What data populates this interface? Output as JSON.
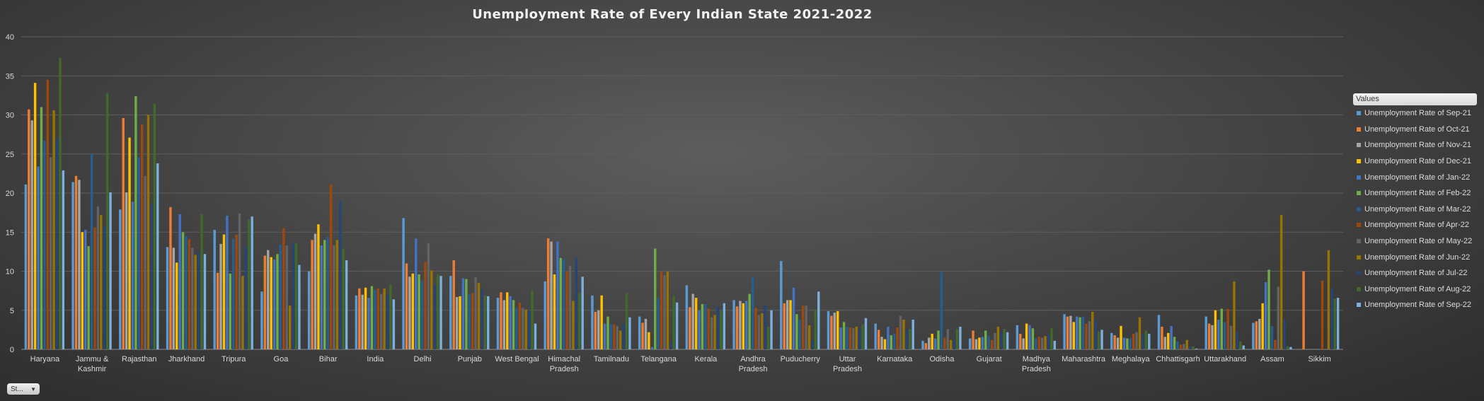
{
  "chart_data": {
    "type": "bar",
    "title": "Unemployment Rate of Every Indian State 2021-2022",
    "xlabel": "",
    "ylabel": "",
    "ylim": [
      0,
      40
    ],
    "yticks": [
      "0",
      "5",
      "10",
      "15",
      "20",
      "25",
      "30",
      "35",
      "40"
    ],
    "grid": true,
    "legend_position": "right",
    "legend_title": "Values",
    "categories": [
      [
        "Haryana"
      ],
      [
        "Jammu &",
        "Kashmir"
      ],
      [
        "Rajasthan"
      ],
      [
        "Jharkhand"
      ],
      [
        "Tripura"
      ],
      [
        "Goa"
      ],
      [
        "Bihar"
      ],
      [
        "India"
      ],
      [
        "Delhi"
      ],
      [
        "Punjab"
      ],
      [
        "West Bengal"
      ],
      [
        "Himachal",
        "Pradesh"
      ],
      [
        "Tamilnadu"
      ],
      [
        "Telangana"
      ],
      [
        "Kerala"
      ],
      [
        "Andhra",
        "Pradesh"
      ],
      [
        "Puducherry"
      ],
      [
        "Uttar",
        "Pradesh"
      ],
      [
        "Karnataka"
      ],
      [
        "Odisha"
      ],
      [
        "Gujarat"
      ],
      [
        "Madhya",
        "Pradesh"
      ],
      [
        "Maharashtra"
      ],
      [
        "Meghalaya"
      ],
      [
        "Chhattisgarh"
      ],
      [
        "Uttarakhand"
      ],
      [
        "Assam"
      ],
      [
        "Sikkim"
      ]
    ],
    "series": [
      {
        "name": "Unemployment Rate of Sep-21",
        "color": "#5b9bd5",
        "values": [
          21.1,
          21.4,
          17.9,
          13.1,
          15.3,
          7.4,
          10.0,
          6.9,
          16.8,
          9.4,
          6.6,
          8.7,
          6.9,
          4.2,
          8.2,
          6.3,
          11.3,
          4.9,
          3.3,
          1.1,
          1.4,
          3.1,
          4.5,
          2.1,
          4.4,
          4.2,
          3.4,
          0.0
        ]
      },
      {
        "name": "Unemployment Rate of Oct-21",
        "color": "#ed7d31",
        "values": [
          30.7,
          22.2,
          29.6,
          18.2,
          9.8,
          12.0,
          14.0,
          7.8,
          11.0,
          11.4,
          7.3,
          14.2,
          4.8,
          3.4,
          5.4,
          5.5,
          5.9,
          4.3,
          2.5,
          0.8,
          2.4,
          2.0,
          4.2,
          1.8,
          2.9,
          3.3,
          3.6,
          10.0
        ]
      },
      {
        "name": "Unemployment Rate of Nov-21",
        "color": "#a5a5a5",
        "values": [
          29.3,
          21.7,
          20.1,
          13.0,
          13.5,
          12.7,
          14.8,
          7.0,
          9.3,
          6.7,
          6.3,
          13.8,
          5.0,
          3.9,
          7.1,
          6.2,
          6.3,
          4.7,
          1.6,
          1.5,
          1.3,
          1.4,
          4.3,
          1.5,
          1.6,
          3.1,
          3.9,
          0.0
        ]
      },
      {
        "name": "Unemployment Rate of Dec-21",
        "color": "#ffc000",
        "values": [
          34.1,
          15.0,
          27.1,
          11.1,
          14.7,
          11.8,
          16.0,
          7.9,
          9.7,
          6.8,
          7.3,
          9.6,
          6.9,
          2.2,
          6.6,
          5.9,
          6.3,
          4.9,
          1.3,
          2.0,
          1.5,
          3.3,
          3.5,
          3.0,
          2.1,
          5.0,
          5.9,
          0.0
        ]
      },
      {
        "name": "Unemployment Rate of Jan-22",
        "color": "#4472c4",
        "values": [
          23.4,
          15.3,
          18.9,
          17.3,
          17.1,
          11.5,
          13.3,
          6.6,
          14.2,
          9.1,
          6.8,
          13.8,
          3.3,
          0.3,
          5.0,
          6.2,
          7.9,
          2.8,
          2.9,
          1.4,
          1.6,
          3.1,
          4.2,
          1.5,
          3.0,
          3.8,
          8.6,
          0.0
        ]
      },
      {
        "name": "Unemployment Rate of Feb-22",
        "color": "#70ad47",
        "values": [
          31.0,
          13.2,
          32.4,
          15.0,
          9.7,
          12.2,
          14.0,
          8.1,
          9.6,
          9.0,
          6.3,
          11.7,
          4.2,
          12.9,
          5.8,
          7.1,
          4.5,
          3.5,
          1.8,
          2.4,
          2.4,
          2.7,
          4.1,
          1.4,
          1.6,
          5.2,
          10.2,
          0.0
        ]
      },
      {
        "name": "Unemployment Rate of Mar-22",
        "color": "#255e91",
        "values": [
          26.7,
          25.0,
          24.6,
          14.5,
          14.1,
          13.4,
          14.4,
          7.6,
          8.8,
          7.0,
          5.3,
          11.5,
          3.2,
          6.6,
          5.8,
          9.3,
          3.8,
          2.9,
          2.0,
          9.9,
          1.7,
          1.4,
          4.2,
          1.4,
          1.0,
          3.5,
          3.0,
          0.0
        ]
      },
      {
        "name": "Unemployment Rate of Apr-22",
        "color": "#9e480e",
        "values": [
          34.5,
          15.6,
          28.8,
          14.1,
          14.7,
          15.5,
          21.1,
          7.8,
          11.2,
          7.2,
          6.0,
          10.0,
          3.2,
          9.9,
          5.2,
          5.3,
          5.6,
          2.8,
          2.8,
          1.5,
          1.2,
          1.6,
          3.3,
          2.0,
          0.6,
          5.2,
          1.2,
          8.8
        ]
      },
      {
        "name": "Unemployment Rate of May-22",
        "color": "#636363",
        "values": [
          24.6,
          18.3,
          22.2,
          13.0,
          17.4,
          13.3,
          13.3,
          7.1,
          13.6,
          9.2,
          5.3,
          10.7,
          3.0,
          9.5,
          4.1,
          4.4,
          5.6,
          2.7,
          4.3,
          2.6,
          2.1,
          1.5,
          3.6,
          2.2,
          0.7,
          3.0,
          8.0,
          0.0
        ]
      },
      {
        "name": "Unemployment Rate of Jun-22",
        "color": "#997300",
        "values": [
          30.6,
          17.2,
          30.0,
          12.1,
          9.4,
          5.6,
          14.0,
          7.8,
          10.1,
          8.5,
          5.1,
          6.2,
          2.4,
          10.0,
          4.4,
          4.6,
          3.1,
          2.9,
          3.8,
          1.2,
          2.9,
          1.7,
          4.8,
          4.1,
          1.2,
          8.7,
          17.2,
          12.7
        ]
      },
      {
        "name": "Unemployment Rate of Jul-22",
        "color": "#264478",
        "values": [
          27.0,
          15.8,
          18.7,
          12.4,
          13.1,
          13.6,
          18.9,
          7.0,
          8.3,
          7.7,
          5.0,
          11.7,
          3.2,
          0.9,
          5.4,
          5.6,
          1.1,
          2.6,
          2.6,
          1.1,
          2.2,
          1.9,
          3.8,
          1.9,
          0.4,
          2.3,
          3.8,
          7.7
        ]
      },
      {
        "name": "Unemployment Rate of Aug-22",
        "color": "#43682b",
        "values": [
          37.3,
          32.8,
          31.4,
          17.3,
          16.6,
          13.6,
          12.8,
          8.3,
          9.6,
          6.9,
          7.5,
          7.2,
          7.2,
          6.9,
          4.9,
          2.9,
          5.1,
          3.2,
          2.6,
          2.6,
          2.6,
          2.7,
          2.3,
          2.4,
          0.4,
          1.0,
          0.4,
          6.5
        ]
      },
      {
        "name": "Unemployment Rate of Sep-22",
        "color": "#7cafdd",
        "values": [
          22.9,
          20.1,
          23.8,
          12.2,
          17.0,
          10.8,
          11.4,
          6.4,
          9.4,
          6.8,
          3.3,
          9.3,
          4.1,
          6.0,
          5.9,
          5.0,
          7.4,
          4.0,
          3.8,
          2.9,
          2.2,
          1.1,
          2.5,
          2.0,
          0.1,
          0.5,
          0.3,
          6.6
        ]
      }
    ]
  },
  "filter_button": {
    "label": "St...",
    "arrow": "▼"
  }
}
